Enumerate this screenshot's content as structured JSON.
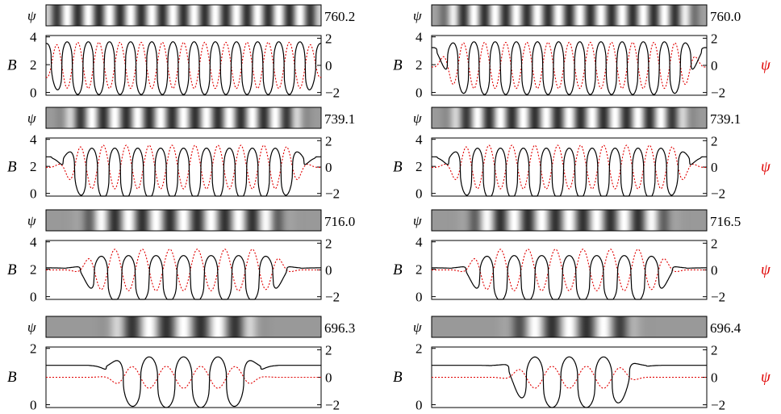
{
  "figure": {
    "psi_symbol": "ψ",
    "b_symbol": "B",
    "colors": {
      "line_b": "#000000",
      "line_psi": "#e00000",
      "label_psi": "#e00000"
    }
  },
  "chart_data": [
    {
      "type": "line",
      "panel": "left-1",
      "strip_value": "760.2",
      "peaks": 13,
      "env_lo": 0.0,
      "env_hi": 1.0,
      "tail_left": 3.4,
      "tail_right": 3.4,
      "b_ylim": [
        -0.2,
        4.1
      ],
      "b_yticks": [
        "4",
        "2",
        "0"
      ],
      "psi_yticks": [
        "2",
        "0",
        "−2"
      ],
      "show_psi_label": false,
      "series": [
        {
          "name": "B",
          "mean": 1.75,
          "amplitude": 1.9
        },
        {
          "name": "ψ",
          "mean": 0.0,
          "amplitude": 1.7
        }
      ]
    },
    {
      "type": "line",
      "panel": "right-1",
      "strip_value": "760.0",
      "peaks": 13,
      "env_lo": 0.05,
      "env_hi": 0.95,
      "tail_left": 3.2,
      "tail_right": 3.2,
      "b_ylim": [
        -0.2,
        4.1
      ],
      "b_yticks": [
        "4",
        "2",
        "0"
      ],
      "psi_yticks": [
        "2",
        "0",
        "−2"
      ],
      "show_psi_label": true,
      "series": [
        {
          "name": "B",
          "mean": 1.75,
          "amplitude": 1.9
        },
        {
          "name": "ψ",
          "mean": 0.0,
          "amplitude": 1.7
        }
      ]
    },
    {
      "type": "line",
      "panel": "left-2",
      "strip_value": "739.1",
      "peaks": 12,
      "env_lo": 0.08,
      "env_hi": 0.92,
      "tail_left": 2.7,
      "tail_right": 2.7,
      "b_ylim": [
        -0.2,
        4.1
      ],
      "b_yticks": [
        "4",
        "2",
        "0"
      ],
      "psi_yticks": [
        "2",
        "0",
        "−2"
      ],
      "show_psi_label": false,
      "series": [
        {
          "name": "B",
          "mean": 1.5,
          "amplitude": 1.85
        },
        {
          "name": "ψ",
          "mean": 0.0,
          "amplitude": 1.65
        }
      ]
    },
    {
      "type": "line",
      "panel": "right-2",
      "strip_value": "739.1",
      "peaks": 12,
      "env_lo": 0.08,
      "env_hi": 0.92,
      "tail_left": 2.7,
      "tail_right": 2.7,
      "b_ylim": [
        -0.2,
        4.1
      ],
      "b_yticks": [
        "4",
        "2",
        "0"
      ],
      "psi_yticks": [
        "2",
        "0",
        "−2"
      ],
      "show_psi_label": true,
      "series": [
        {
          "name": "B",
          "mean": 1.5,
          "amplitude": 1.85
        },
        {
          "name": "ψ",
          "mean": 0.0,
          "amplitude": 1.65
        }
      ]
    },
    {
      "type": "line",
      "panel": "left-3",
      "strip_value": "716.0",
      "peaks": 10,
      "env_lo": 0.15,
      "env_hi": 0.85,
      "tail_left": 2.1,
      "tail_right": 2.1,
      "b_ylim": [
        -0.2,
        4.1
      ],
      "b_yticks": [
        "4",
        "2",
        "0"
      ],
      "psi_yticks": [
        "2",
        "0",
        "−2"
      ],
      "show_psi_label": false,
      "series": [
        {
          "name": "B",
          "mean": 1.35,
          "amplitude": 1.65
        },
        {
          "name": "ψ",
          "mean": 0.0,
          "amplitude": 1.55
        }
      ]
    },
    {
      "type": "line",
      "panel": "right-3",
      "strip_value": "716.5",
      "peaks": 10,
      "env_lo": 0.15,
      "env_hi": 0.85,
      "tail_left": 2.1,
      "tail_right": 2.1,
      "b_ylim": [
        -0.2,
        4.1
      ],
      "b_yticks": [
        "4",
        "2",
        "0"
      ],
      "psi_yticks": [
        "2",
        "0",
        "−2"
      ],
      "show_psi_label": true,
      "series": [
        {
          "name": "B",
          "mean": 1.35,
          "amplitude": 1.65
        },
        {
          "name": "ψ",
          "mean": 0.0,
          "amplitude": 1.55
        }
      ]
    },
    {
      "type": "line",
      "panel": "left-4",
      "strip_value": "696.3",
      "peaks": 8,
      "env_lo": 0.25,
      "env_hi": 0.75,
      "tail_left": 1.4,
      "tail_right": 1.4,
      "b_ylim": [
        -0.1,
        2.05
      ],
      "b_yticks": [
        "2",
        "0"
      ],
      "psi_yticks": [
        "2",
        "0",
        "−2"
      ],
      "show_psi_label": false,
      "series": [
        {
          "name": "B",
          "mean": 0.8,
          "amplitude": 0.9
        },
        {
          "name": "ψ",
          "mean": 0.0,
          "amplitude": 0.8
        }
      ]
    },
    {
      "type": "line",
      "panel": "right-4",
      "strip_value": "696.4",
      "peaks": 8,
      "env_lo": 0.3,
      "env_hi": 0.72,
      "tail_left": 1.4,
      "tail_right": 1.4,
      "b_ylim": [
        -0.1,
        2.05
      ],
      "b_yticks": [
        "2",
        "0"
      ],
      "psi_yticks": [
        "2",
        "0",
        "−2"
      ],
      "show_psi_label": true,
      "series": [
        {
          "name": "B",
          "mean": 0.8,
          "amplitude": 0.9
        },
        {
          "name": "ψ",
          "mean": 0.0,
          "amplitude": 0.8
        }
      ]
    }
  ]
}
